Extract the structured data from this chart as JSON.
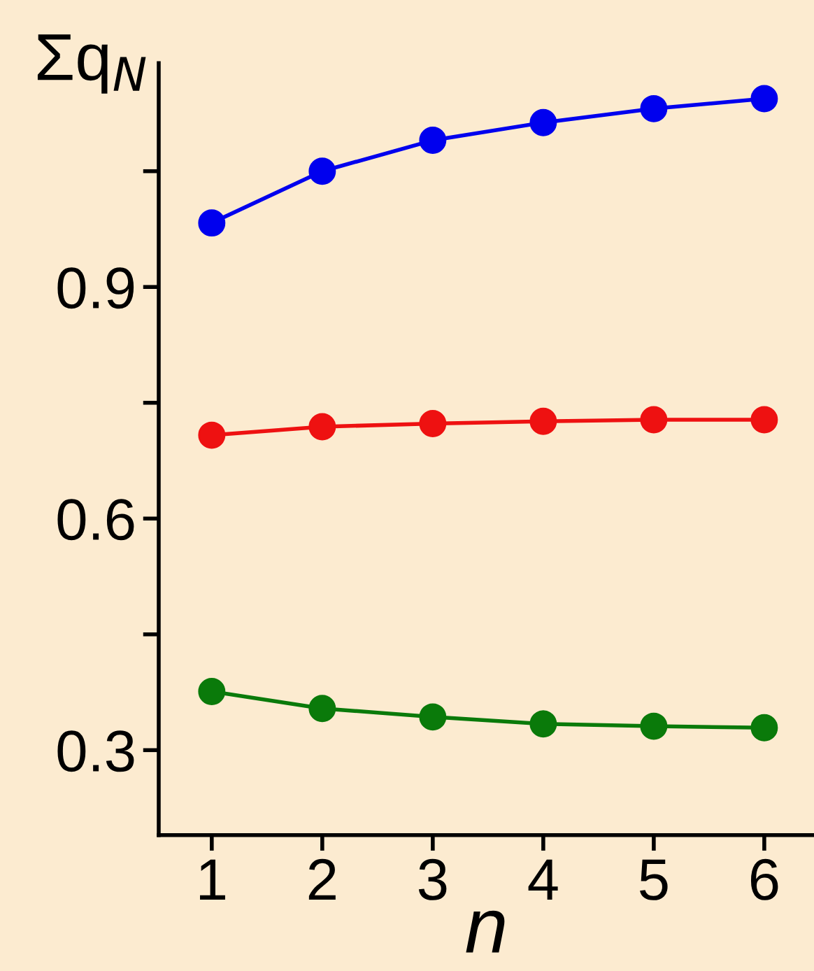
{
  "chart_data": {
    "type": "line",
    "xlabel": "n",
    "ylabel": "Σq$_{N}$",
    "x": [
      1,
      2,
      3,
      4,
      5,
      6
    ],
    "series": [
      {
        "color": "#0000ee",
        "values": [
          0.983,
          1.05,
          1.09,
          1.113,
          1.131,
          1.144
        ]
      },
      {
        "color": "#ee1111",
        "values": [
          0.708,
          0.719,
          0.723,
          0.726,
          0.728,
          0.728
        ]
      },
      {
        "color": "#0a7a0a",
        "values": [
          0.376,
          0.354,
          0.343,
          0.334,
          0.331,
          0.329
        ]
      }
    ],
    "xlim": [
      0.52,
      6.45
    ],
    "ylim": [
      0.19,
      1.19
    ],
    "xticks": [
      1,
      2,
      3,
      4,
      5,
      6
    ],
    "yticks": [
      0.3,
      {
        "value": 0.45,
        "label": null
      },
      0.6,
      {
        "value": 0.75,
        "label": null
      },
      0.9,
      {
        "value": 1.05,
        "label": null
      }
    ],
    "marker": "circle",
    "line_style": "solid",
    "grid": false,
    "legend": false
  }
}
